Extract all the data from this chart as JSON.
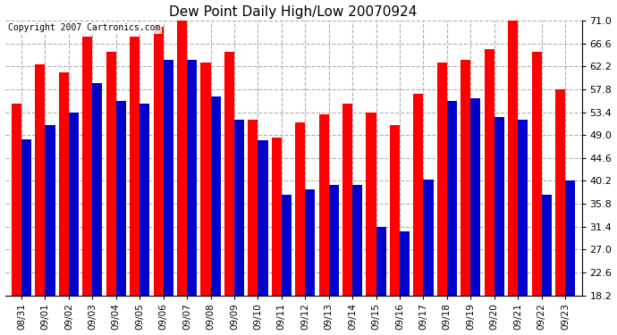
{
  "title": "Dew Point Daily High/Low 20070924",
  "copyright": "Copyright 2007 Cartronics.com",
  "dates": [
    "08/31",
    "09/01",
    "09/02",
    "09/03",
    "09/04",
    "09/05",
    "09/06",
    "09/07",
    "09/08",
    "09/09",
    "09/10",
    "09/11",
    "09/12",
    "09/13",
    "09/14",
    "09/15",
    "09/16",
    "09/17",
    "09/18",
    "09/19",
    "09/20",
    "09/21",
    "09/22",
    "09/23"
  ],
  "highs": [
    55.0,
    62.6,
    61.0,
    68.0,
    65.0,
    68.0,
    69.8,
    71.0,
    63.0,
    65.0,
    52.0,
    48.5,
    51.5,
    53.0,
    55.0,
    53.4,
    51.0,
    57.0,
    63.0,
    63.5,
    65.5,
    71.0,
    65.0,
    57.8
  ],
  "lows": [
    48.2,
    51.0,
    53.4,
    59.0,
    55.5,
    55.0,
    63.5,
    63.5,
    56.5,
    52.0,
    48.0,
    37.5,
    38.5,
    39.5,
    39.5,
    31.4,
    30.5,
    40.5,
    55.5,
    56.0,
    52.5,
    52.0,
    37.5,
    40.2
  ],
  "high_color": "#FF0000",
  "low_color": "#0000CC",
  "bg_color": "#FFFFFF",
  "grid_color": "#B0B0B0",
  "ylim_min": 18.2,
  "ylim_max": 71.0,
  "yticks": [
    18.2,
    22.6,
    27.0,
    31.4,
    35.8,
    40.2,
    44.6,
    49.0,
    53.4,
    57.8,
    62.2,
    66.6,
    71.0
  ],
  "figwidth": 6.9,
  "figheight": 3.75,
  "dpi": 100
}
